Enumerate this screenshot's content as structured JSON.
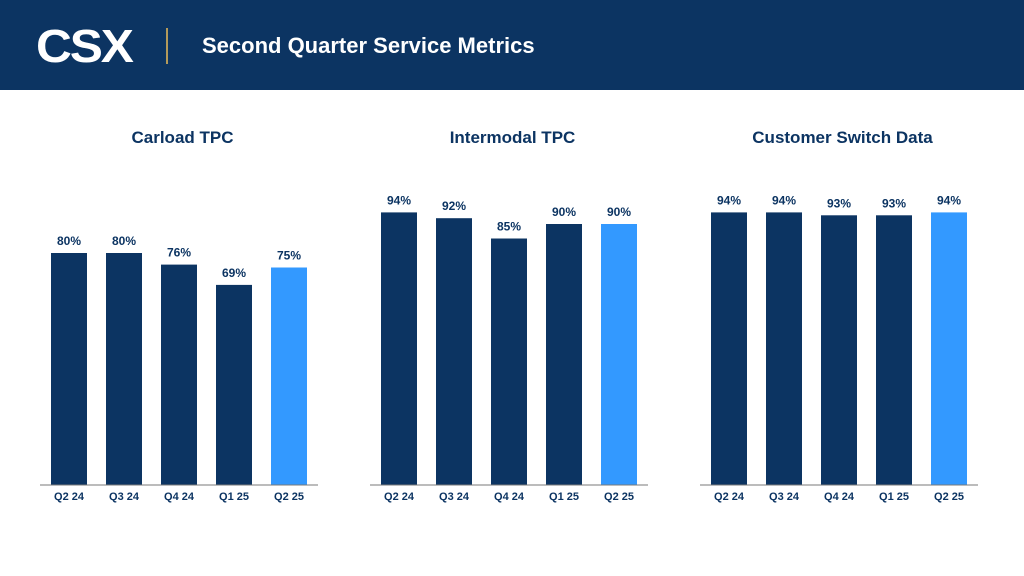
{
  "header": {
    "logo_text": "CSX",
    "title": "Second Quarter Service Metrics"
  },
  "colors": {
    "header_bg": "#0c3462",
    "bar_default": "#0c3462",
    "bar_highlight": "#3399ff",
    "title_text": "#0c3462",
    "axis": "#7a7a7a",
    "divider": "#b39a5b"
  },
  "chart_data": [
    {
      "type": "bar",
      "title": "Carload TPC",
      "categories": [
        "Q2 24",
        "Q3 24",
        "Q4 24",
        "Q1 25",
        "Q2 25"
      ],
      "values": [
        80,
        80,
        76,
        69,
        75
      ],
      "labels": [
        "80%",
        "80%",
        "76%",
        "69%",
        "75%"
      ],
      "highlight_index": 4,
      "ylim": [
        0,
        100
      ],
      "xlabel": "",
      "ylabel": "",
      "grid": false
    },
    {
      "type": "bar",
      "title": "Intermodal TPC",
      "categories": [
        "Q2 24",
        "Q3 24",
        "Q4 24",
        "Q1 25",
        "Q2 25"
      ],
      "values": [
        94,
        92,
        85,
        90,
        90
      ],
      "labels": [
        "94%",
        "92%",
        "85%",
        "90%",
        "90%"
      ],
      "highlight_index": 4,
      "ylim": [
        0,
        100
      ],
      "xlabel": "",
      "ylabel": "",
      "grid": false
    },
    {
      "type": "bar",
      "title": "Customer Switch Data",
      "categories": [
        "Q2 24",
        "Q3 24",
        "Q4 24",
        "Q1 25",
        "Q2 25"
      ],
      "values": [
        94,
        94,
        93,
        93,
        94
      ],
      "labels": [
        "94%",
        "94%",
        "93%",
        "93%",
        "94%"
      ],
      "highlight_index": 4,
      "ylim": [
        0,
        100
      ],
      "xlabel": "",
      "ylabel": "",
      "grid": false
    }
  ]
}
